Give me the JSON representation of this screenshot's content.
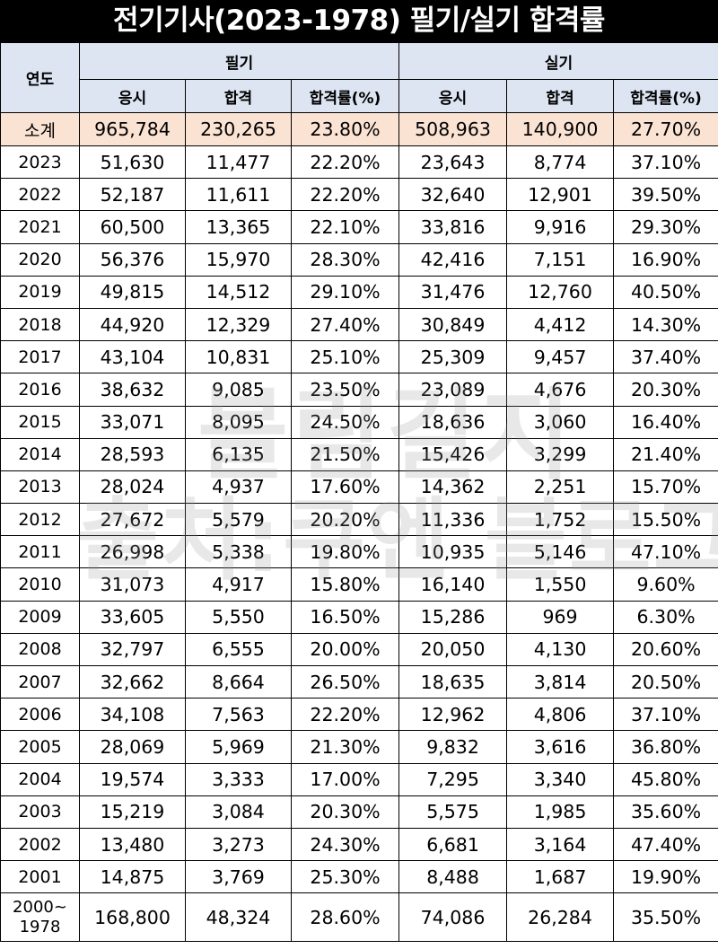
{
  "title": "전기기사(2023-1978) 필기/실기 합격률",
  "header": {
    "year": "연도",
    "written": "필기",
    "practical": "실기",
    "applicants": "응시",
    "passed": "합격",
    "rate": "합격률(%)"
  },
  "subtotal": {
    "label": "소계",
    "w_app": "965,784",
    "w_pass": "230,265",
    "w_rate": "23.80%",
    "p_app": "508,963",
    "p_pass": "140,900",
    "p_rate": "27.70%"
  },
  "rows": [
    {
      "year": "2023",
      "w_app": "51,630",
      "w_pass": "11,477",
      "w_rate": "22.20%",
      "p_app": "23,643",
      "p_pass": "8,774",
      "p_rate": "37.10%"
    },
    {
      "year": "2022",
      "w_app": "52,187",
      "w_pass": "11,611",
      "w_rate": "22.20%",
      "p_app": "32,640",
      "p_pass": "12,901",
      "p_rate": "39.50%"
    },
    {
      "year": "2021",
      "w_app": "60,500",
      "w_pass": "13,365",
      "w_rate": "22.10%",
      "p_app": "33,816",
      "p_pass": "9,916",
      "p_rate": "29.30%"
    },
    {
      "year": "2020",
      "w_app": "56,376",
      "w_pass": "15,970",
      "w_rate": "28.30%",
      "p_app": "42,416",
      "p_pass": "7,151",
      "p_rate": "16.90%"
    },
    {
      "year": "2019",
      "w_app": "49,815",
      "w_pass": "14,512",
      "w_rate": "29.10%",
      "p_app": "31,476",
      "p_pass": "12,760",
      "p_rate": "40.50%"
    },
    {
      "year": "2018",
      "w_app": "44,920",
      "w_pass": "12,329",
      "w_rate": "27.40%",
      "p_app": "30,849",
      "p_pass": "4,412",
      "p_rate": "14.30%"
    },
    {
      "year": "2017",
      "w_app": "43,104",
      "w_pass": "10,831",
      "w_rate": "25.10%",
      "p_app": "25,309",
      "p_pass": "9,457",
      "p_rate": "37.40%"
    },
    {
      "year": "2016",
      "w_app": "38,632",
      "w_pass": "9,085",
      "w_rate": "23.50%",
      "p_app": "23,089",
      "p_pass": "4,676",
      "p_rate": "20.30%"
    },
    {
      "year": "2015",
      "w_app": "33,071",
      "w_pass": "8,095",
      "w_rate": "24.50%",
      "p_app": "18,636",
      "p_pass": "3,060",
      "p_rate": "16.40%"
    },
    {
      "year": "2014",
      "w_app": "28,593",
      "w_pass": "6,135",
      "w_rate": "21.50%",
      "p_app": "15,426",
      "p_pass": "3,299",
      "p_rate": "21.40%"
    },
    {
      "year": "2013",
      "w_app": "28,024",
      "w_pass": "4,937",
      "w_rate": "17.60%",
      "p_app": "14,362",
      "p_pass": "2,251",
      "p_rate": "15.70%"
    },
    {
      "year": "2012",
      "w_app": "27,672",
      "w_pass": "5,579",
      "w_rate": "20.20%",
      "p_app": "11,336",
      "p_pass": "1,752",
      "p_rate": "15.50%"
    },
    {
      "year": "2011",
      "w_app": "26,998",
      "w_pass": "5,338",
      "w_rate": "19.80%",
      "p_app": "10,935",
      "p_pass": "5,146",
      "p_rate": "47.10%"
    },
    {
      "year": "2010",
      "w_app": "31,073",
      "w_pass": "4,917",
      "w_rate": "15.80%",
      "p_app": "16,140",
      "p_pass": "1,550",
      "p_rate": "9.60%"
    },
    {
      "year": "2009",
      "w_app": "33,605",
      "w_pass": "5,550",
      "w_rate": "16.50%",
      "p_app": "15,286",
      "p_pass": "969",
      "p_rate": "6.30%"
    },
    {
      "year": "2008",
      "w_app": "32,797",
      "w_pass": "6,555",
      "w_rate": "20.00%",
      "p_app": "20,050",
      "p_pass": "4,130",
      "p_rate": "20.60%"
    },
    {
      "year": "2007",
      "w_app": "32,662",
      "w_pass": "8,664",
      "w_rate": "26.50%",
      "p_app": "18,635",
      "p_pass": "3,814",
      "p_rate": "20.50%"
    },
    {
      "year": "2006",
      "w_app": "34,108",
      "w_pass": "7,563",
      "w_rate": "22.20%",
      "p_app": "12,962",
      "p_pass": "4,806",
      "p_rate": "37.10%"
    },
    {
      "year": "2005",
      "w_app": "28,069",
      "w_pass": "5,969",
      "w_rate": "21.30%",
      "p_app": "9,832",
      "p_pass": "3,616",
      "p_rate": "36.80%"
    },
    {
      "year": "2004",
      "w_app": "19,574",
      "w_pass": "3,333",
      "w_rate": "17.00%",
      "p_app": "7,295",
      "p_pass": "3,340",
      "p_rate": "45.80%"
    },
    {
      "year": "2003",
      "w_app": "15,219",
      "w_pass": "3,084",
      "w_rate": "20.30%",
      "p_app": "5,575",
      "p_pass": "1,985",
      "p_rate": "35.60%"
    },
    {
      "year": "2002",
      "w_app": "13,480",
      "w_pass": "3,273",
      "w_rate": "24.30%",
      "p_app": "6,681",
      "p_pass": "3,164",
      "p_rate": "47.40%"
    },
    {
      "year": "2001",
      "w_app": "14,875",
      "w_pass": "3,769",
      "w_rate": "25.30%",
      "p_app": "8,488",
      "p_pass": "1,687",
      "p_rate": "19.90%"
    }
  ],
  "last_row": {
    "year_line1": "2000~",
    "year_line2": "1978",
    "w_app": "168,800",
    "w_pass": "48,324",
    "w_rate": "28.60%",
    "p_app": "74,086",
    "p_pass": "26,284",
    "p_rate": "35.50%"
  },
  "watermark": {
    "line1": "블림길지",
    "line2": "출처:쿠엔 블로그"
  },
  "colors": {
    "header_bg": "#dde5f2",
    "subtotal_bg": "#fbe3d3",
    "title_bg": "#000000"
  }
}
